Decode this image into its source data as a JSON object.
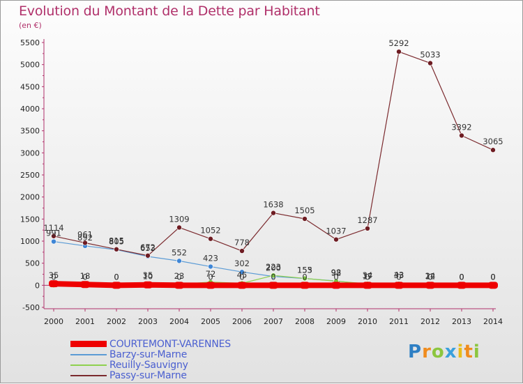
{
  "title": "Evolution du Montant de la Dette par Habitant",
  "unit_label": "(en €)",
  "logo_text": "Proxiti",
  "chart_data": {
    "type": "line",
    "title": "Evolution du Montant de la Dette par Habitant",
    "ylabel": "(en €)",
    "xlabel": "",
    "x": [
      2000,
      2001,
      2002,
      2003,
      2004,
      2005,
      2006,
      2007,
      2008,
      2009,
      2010,
      2011,
      2012,
      2013,
      2014
    ],
    "ylim": [
      -500,
      5500
    ],
    "yticks": [
      -500,
      0,
      500,
      1000,
      1500,
      2000,
      2500,
      3000,
      3500,
      4000,
      4500,
      5000,
      5500
    ],
    "grid": false,
    "legend_position": "bottom-left",
    "series": [
      {
        "name": "COURTEMONT-VARENNES",
        "color": "#ee0000",
        "width": 8,
        "marker": "#ee0000",
        "values": [
          35,
          18,
          0,
          10,
          0,
          0,
          0,
          0,
          0,
          0,
          0,
          0,
          0,
          0,
          0
        ]
      },
      {
        "name": "Barzy-sur-Marne",
        "color": "#5b9bd5",
        "width": 1.2,
        "marker": "#3f86d6",
        "values": [
          991,
          892,
          805,
          653,
          552,
          423,
          302,
          200,
          153,
          98,
          17,
          43,
          12,
          0,
          0
        ]
      },
      {
        "name": "Reuilly-Sauvigny",
        "color": "#8fd14f",
        "width": 1.2,
        "marker": "#7cc63f",
        "values": [
          0,
          0,
          0,
          35,
          23,
          72,
          45,
          223,
          155,
          92,
          34,
          33,
          24,
          0,
          0
        ]
      },
      {
        "name": "Passy-sur-Marne",
        "color": "#7b2a2e",
        "width": 1.2,
        "marker": "#6e1c22",
        "values": [
          1114,
          961,
          815,
          672,
          1309,
          1052,
          778,
          1638,
          1505,
          1037,
          1287,
          5292,
          5033,
          3392,
          3065
        ]
      }
    ]
  }
}
